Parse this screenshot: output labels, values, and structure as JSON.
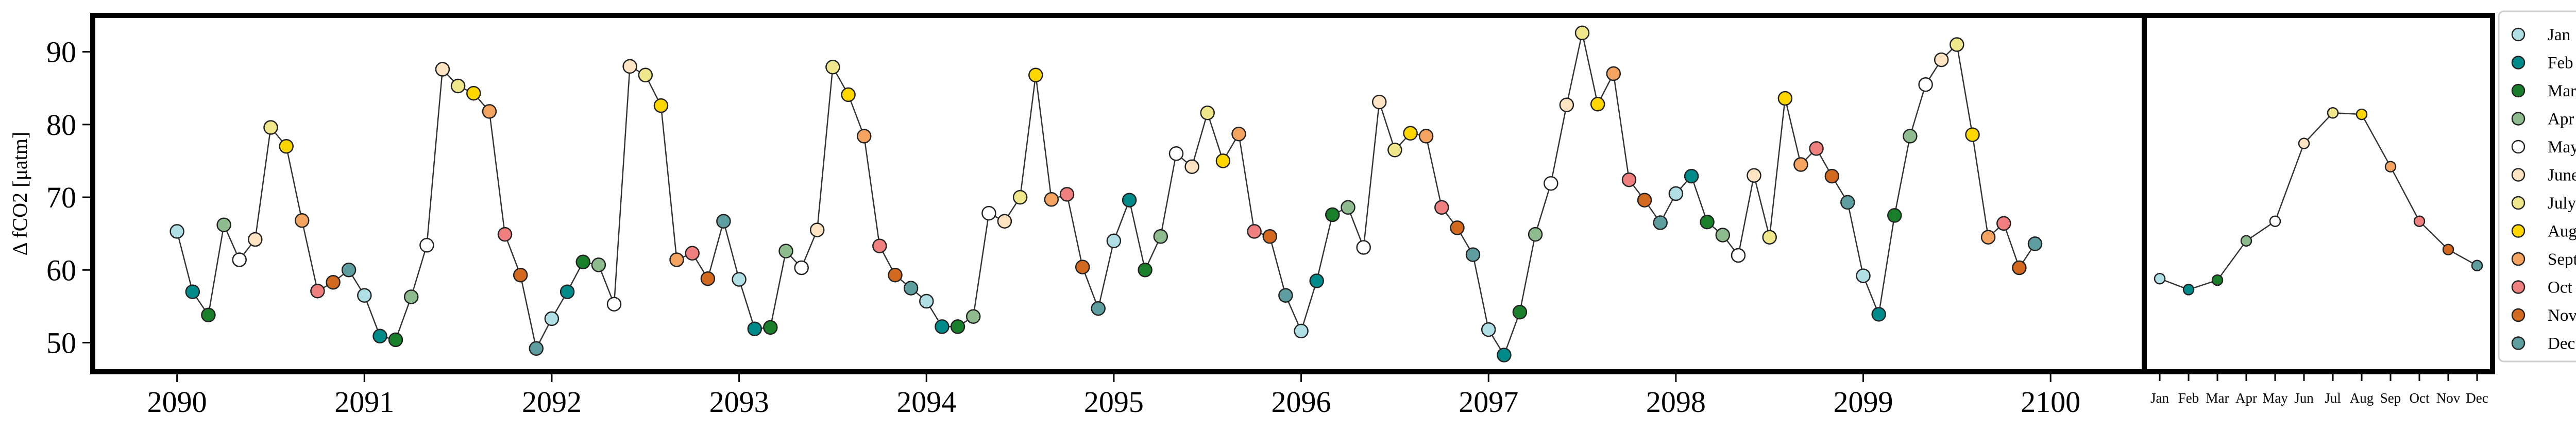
{
  "chart_data": [
    {
      "type": "line",
      "ylabel": "Δ fCO2 [μatm]",
      "xlabel": "",
      "xlim": [
        2089.55,
        2100.5
      ],
      "ylim": [
        46,
        95
      ],
      "x_ticks": [
        2090,
        2091,
        2092,
        2093,
        2094,
        2095,
        2096,
        2097,
        2098,
        2099,
        2100
      ],
      "y_ticks": [
        50,
        60,
        70,
        80,
        90
      ],
      "grid": false,
      "marker_color_by_month": true,
      "series": [
        {
          "x": [
            2090.0,
            2090.083,
            2090.167,
            2090.25,
            2090.333,
            2090.417,
            2090.5,
            2090.583,
            2090.667,
            2090.75,
            2090.833,
            2090.917,
            2091.0,
            2091.083,
            2091.167,
            2091.25,
            2091.333,
            2091.417,
            2091.5,
            2091.583,
            2091.667,
            2091.75,
            2091.833,
            2091.917,
            2092.0,
            2092.083,
            2092.167,
            2092.25,
            2092.333,
            2092.417,
            2092.5,
            2092.583,
            2092.667,
            2092.75,
            2092.833,
            2092.917,
            2093.0,
            2093.083,
            2093.167,
            2093.25,
            2093.333,
            2093.417,
            2093.5,
            2093.583,
            2093.667,
            2093.75,
            2093.833,
            2093.917,
            2094.0,
            2094.083,
            2094.167,
            2094.25,
            2094.333,
            2094.417,
            2094.5,
            2094.583,
            2094.667,
            2094.75,
            2094.833,
            2094.917,
            2095.0,
            2095.083,
            2095.167,
            2095.25,
            2095.333,
            2095.417,
            2095.5,
            2095.583,
            2095.667,
            2095.75,
            2095.833,
            2095.917,
            2096.0,
            2096.083,
            2096.167,
            2096.25,
            2096.333,
            2096.417,
            2096.5,
            2096.583,
            2096.667,
            2096.75,
            2096.833,
            2096.917,
            2097.0,
            2097.083,
            2097.167,
            2097.25,
            2097.333,
            2097.417,
            2097.5,
            2097.583,
            2097.667,
            2097.75,
            2097.833,
            2097.917,
            2098.0,
            2098.083,
            2098.167,
            2098.25,
            2098.333,
            2098.417,
            2098.5,
            2098.583,
            2098.667,
            2098.75,
            2098.833,
            2098.917,
            2099.0,
            2099.083,
            2099.167,
            2099.25,
            2099.333,
            2099.417,
            2099.5,
            2099.583,
            2099.667,
            2099.75,
            2099.833,
            2099.917,
            2100.0
          ],
          "y": [
            65.3,
            57.0,
            53.8,
            66.2,
            61.4,
            64.2,
            79.6,
            77.0,
            66.8,
            57.1,
            58.3,
            60.0,
            56.5,
            50.9,
            50.4,
            56.3,
            63.4,
            87.6,
            85.3,
            84.3,
            81.8,
            64.9,
            59.3,
            49.2,
            53.3,
            57.0,
            61.1,
            60.7,
            55.3,
            88.0,
            86.8,
            82.6,
            61.4,
            62.3,
            58.8,
            66.7,
            58.7,
            51.9,
            52.1,
            62.6,
            60.3,
            65.5,
            87.9,
            84.1,
            78.4,
            63.3,
            59.3,
            57.5,
            55.7,
            52.2,
            52.2,
            53.6,
            67.8,
            66.7,
            70.0,
            86.8,
            69.7,
            70.4,
            60.4,
            54.7,
            64.0,
            69.6,
            60.0,
            64.6,
            76.0,
            74.2,
            81.6,
            75.0,
            78.7,
            65.3,
            64.6,
            56.5,
            51.6,
            58.5,
            67.6,
            68.6,
            63.1,
            83.1,
            76.5,
            78.8,
            78.4,
            68.6,
            65.8,
            62.1,
            51.8,
            48.3,
            54.2,
            64.9,
            71.9,
            82.7,
            92.6,
            82.8,
            87.0,
            72.4,
            69.6,
            66.5,
            70.5,
            72.9,
            66.6,
            64.8,
            62.0,
            73.0,
            64.5,
            83.6,
            74.5,
            76.7,
            72.9,
            69.3,
            59.2,
            53.9,
            67.5,
            78.4,
            85.5,
            88.9,
            91.0,
            78.6,
            64.5,
            66.4,
            60.3,
            63.6,
            null
          ]
        }
      ]
    },
    {
      "type": "line",
      "categories": [
        "Jan",
        "Feb",
        "Mar",
        "Apr",
        "May",
        "Jun",
        "Jul",
        "Aug",
        "Sep",
        "Oct",
        "Nov",
        "Dec"
      ],
      "values": [
        58.8,
        57.3,
        58.6,
        64.0,
        66.7,
        77.4,
        81.6,
        81.4,
        74.2,
        66.7,
        62.8,
        60.6
      ],
      "ylim": [
        46,
        95
      ],
      "grid": false
    }
  ],
  "legend": {
    "placement": "right",
    "entries": [
      {
        "label": "Jan",
        "color": "#b0e0e6"
      },
      {
        "label": "Feb",
        "color": "#008b8b"
      },
      {
        "label": "Mar",
        "color": "#1a7f2a"
      },
      {
        "label": "Apr",
        "color": "#8fbc8f"
      },
      {
        "label": "May",
        "color": "#ffffff"
      },
      {
        "label": "June",
        "color": "#ffe4c4"
      },
      {
        "label": "July",
        "color": "#f0e68c"
      },
      {
        "label": "Aug",
        "color": "#ffd700"
      },
      {
        "label": "Sept",
        "color": "#f4a460"
      },
      {
        "label": "Oct",
        "color": "#f08080"
      },
      {
        "label": "Nov",
        "color": "#d2691e"
      },
      {
        "label": "Dec",
        "color": "#5f9ea0"
      }
    ]
  },
  "colors": {
    "line": "#333333",
    "marker_edge": "#222222",
    "frame": "#000000"
  }
}
